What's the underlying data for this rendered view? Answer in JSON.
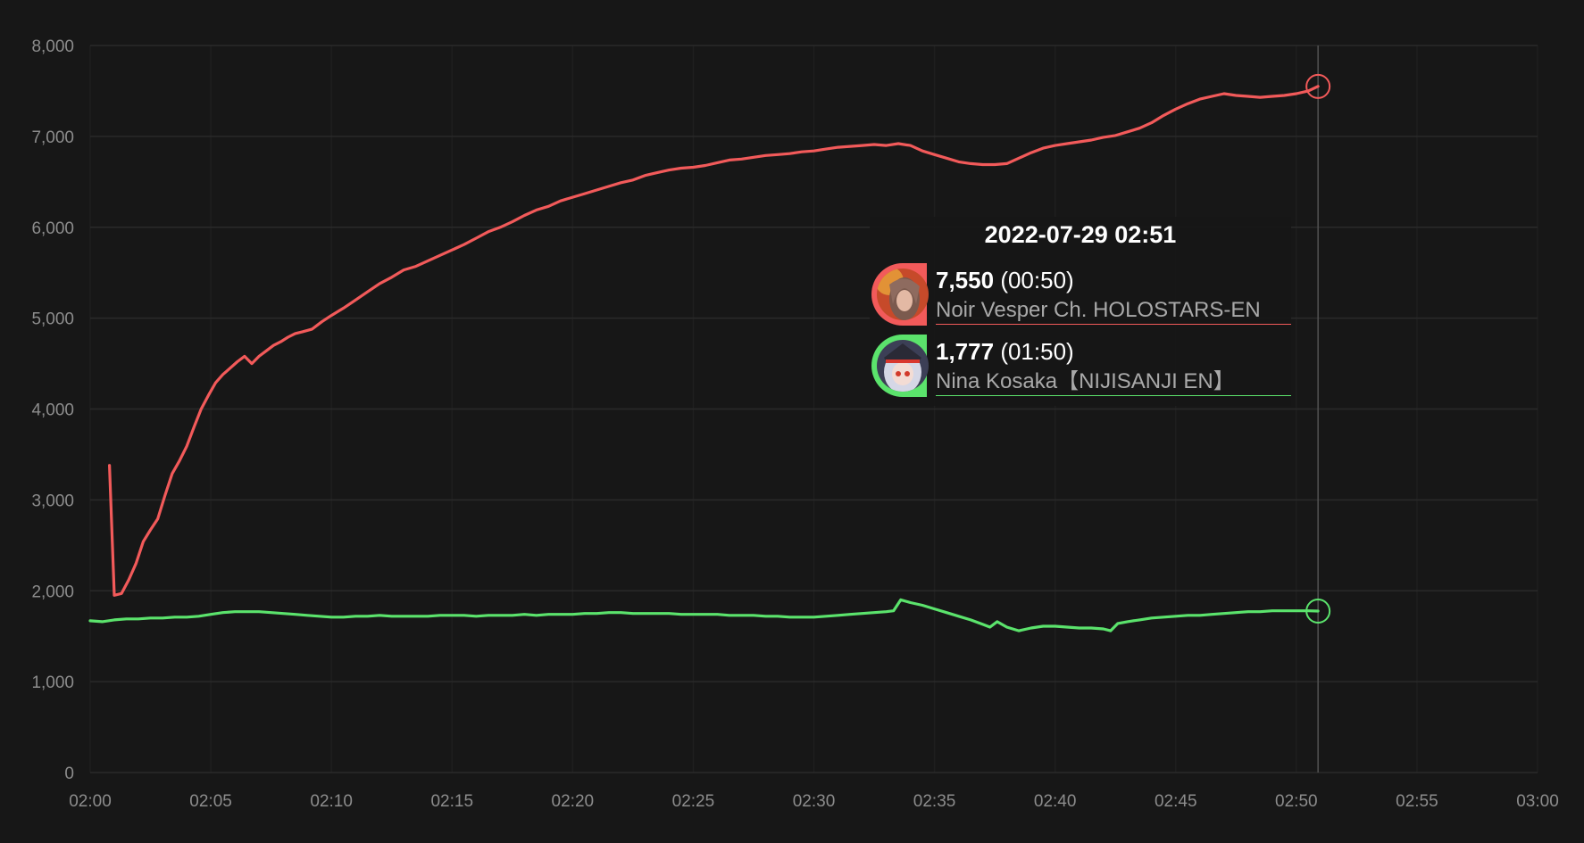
{
  "colors": {
    "background": "#171717",
    "noir": "#f25a5a",
    "nina": "#5be36c",
    "grid": "#2a2a2a",
    "tick": "#8c8c8c",
    "crosshair": "#555555"
  },
  "tooltip": {
    "title": "2022-07-29 02:51",
    "rows": [
      {
        "value": "7,550",
        "duration": "(00:50)",
        "name": "Noir Vesper Ch. HOLOSTARS-EN",
        "color": "#f25a5a",
        "icon": "noir-avatar-icon"
      },
      {
        "value": "1,777",
        "duration": "(01:50)",
        "name": "Nina Kosaka【NIJISANJI EN】",
        "color": "#5be36c",
        "icon": "nina-avatar-icon"
      }
    ]
  },
  "chart_data": {
    "type": "line",
    "xlim": [
      0,
      60
    ],
    "ylim": [
      0,
      8000
    ],
    "grid": true,
    "x_ticks": [
      {
        "minute": 0,
        "label": "02:00"
      },
      {
        "minute": 5,
        "label": "02:05"
      },
      {
        "minute": 10,
        "label": "02:10"
      },
      {
        "minute": 15,
        "label": "02:15"
      },
      {
        "minute": 20,
        "label": "02:20"
      },
      {
        "minute": 25,
        "label": "02:25"
      },
      {
        "minute": 30,
        "label": "02:30"
      },
      {
        "minute": 35,
        "label": "02:35"
      },
      {
        "minute": 40,
        "label": "02:40"
      },
      {
        "minute": 45,
        "label": "02:45"
      },
      {
        "minute": 50,
        "label": "02:50"
      },
      {
        "minute": 55,
        "label": "02:55"
      },
      {
        "minute": 60,
        "label": "03:00"
      }
    ],
    "y_ticks": [
      {
        "value": 0,
        "label": "0"
      },
      {
        "value": 1000,
        "label": "1,000"
      },
      {
        "value": 2000,
        "label": "2,000"
      },
      {
        "value": 3000,
        "label": "3,000"
      },
      {
        "value": 4000,
        "label": "4,000"
      },
      {
        "value": 5000,
        "label": "5,000"
      },
      {
        "value": 6000,
        "label": "6,000"
      },
      {
        "value": 7000,
        "label": "7,000"
      },
      {
        "value": 8000,
        "label": "8,000"
      }
    ],
    "crosshair_minute": 50.9,
    "series": [
      {
        "name": "Noir Vesper Ch. HOLOSTARS-EN",
        "color": "#f25a5a",
        "points": [
          [
            0.8,
            3380
          ],
          [
            1.0,
            1950
          ],
          [
            1.3,
            1970
          ],
          [
            1.6,
            2120
          ],
          [
            1.9,
            2300
          ],
          [
            2.2,
            2540
          ],
          [
            2.5,
            2670
          ],
          [
            2.8,
            2790
          ],
          [
            3.1,
            3050
          ],
          [
            3.4,
            3290
          ],
          [
            3.7,
            3430
          ],
          [
            4.0,
            3590
          ],
          [
            4.3,
            3800
          ],
          [
            4.6,
            4000
          ],
          [
            4.9,
            4150
          ],
          [
            5.2,
            4290
          ],
          [
            5.5,
            4380
          ],
          [
            5.8,
            4450
          ],
          [
            6.1,
            4520
          ],
          [
            6.4,
            4580
          ],
          [
            6.7,
            4500
          ],
          [
            7.0,
            4580
          ],
          [
            7.3,
            4640
          ],
          [
            7.6,
            4700
          ],
          [
            7.9,
            4740
          ],
          [
            8.2,
            4790
          ],
          [
            8.5,
            4830
          ],
          [
            8.8,
            4850
          ],
          [
            9.2,
            4880
          ],
          [
            9.6,
            4960
          ],
          [
            10.0,
            5030
          ],
          [
            10.5,
            5110
          ],
          [
            11.0,
            5200
          ],
          [
            11.5,
            5290
          ],
          [
            12.0,
            5380
          ],
          [
            12.5,
            5450
          ],
          [
            13.0,
            5530
          ],
          [
            13.5,
            5570
          ],
          [
            14.0,
            5630
          ],
          [
            14.5,
            5690
          ],
          [
            15.0,
            5750
          ],
          [
            15.5,
            5810
          ],
          [
            16.0,
            5880
          ],
          [
            16.5,
            5950
          ],
          [
            17.0,
            6000
          ],
          [
            17.5,
            6060
          ],
          [
            18.0,
            6130
          ],
          [
            18.5,
            6190
          ],
          [
            19.0,
            6230
          ],
          [
            19.5,
            6290
          ],
          [
            20.0,
            6330
          ],
          [
            20.5,
            6370
          ],
          [
            21.0,
            6410
          ],
          [
            21.5,
            6450
          ],
          [
            22.0,
            6490
          ],
          [
            22.5,
            6520
          ],
          [
            23.0,
            6570
          ],
          [
            23.5,
            6600
          ],
          [
            24.0,
            6630
          ],
          [
            24.5,
            6650
          ],
          [
            25.0,
            6660
          ],
          [
            25.5,
            6680
          ],
          [
            26.0,
            6710
          ],
          [
            26.5,
            6740
          ],
          [
            27.0,
            6750
          ],
          [
            27.5,
            6770
          ],
          [
            28.0,
            6790
          ],
          [
            28.5,
            6800
          ],
          [
            29.0,
            6810
          ],
          [
            29.5,
            6830
          ],
          [
            30.0,
            6840
          ],
          [
            30.5,
            6860
          ],
          [
            31.0,
            6880
          ],
          [
            31.5,
            6890
          ],
          [
            32.0,
            6900
          ],
          [
            32.5,
            6910
          ],
          [
            33.0,
            6900
          ],
          [
            33.5,
            6920
          ],
          [
            34.0,
            6900
          ],
          [
            34.5,
            6840
          ],
          [
            35.0,
            6800
          ],
          [
            35.5,
            6760
          ],
          [
            36.0,
            6720
          ],
          [
            36.5,
            6700
          ],
          [
            37.0,
            6690
          ],
          [
            37.5,
            6690
          ],
          [
            38.0,
            6700
          ],
          [
            38.5,
            6760
          ],
          [
            39.0,
            6820
          ],
          [
            39.5,
            6870
          ],
          [
            40.0,
            6900
          ],
          [
            40.5,
            6920
          ],
          [
            41.0,
            6940
          ],
          [
            41.5,
            6960
          ],
          [
            42.0,
            6990
          ],
          [
            42.5,
            7010
          ],
          [
            43.0,
            7050
          ],
          [
            43.5,
            7090
          ],
          [
            44.0,
            7150
          ],
          [
            44.5,
            7230
          ],
          [
            45.0,
            7300
          ],
          [
            45.5,
            7360
          ],
          [
            46.0,
            7410
          ],
          [
            46.5,
            7440
          ],
          [
            47.0,
            7470
          ],
          [
            47.5,
            7450
          ],
          [
            48.0,
            7440
          ],
          [
            48.5,
            7430
          ],
          [
            49.0,
            7440
          ],
          [
            49.5,
            7450
          ],
          [
            50.0,
            7470
          ],
          [
            50.5,
            7500
          ],
          [
            50.9,
            7550
          ]
        ]
      },
      {
        "name": "Nina Kosaka【NIJISANJI EN】",
        "color": "#5be36c",
        "points": [
          [
            0.0,
            1670
          ],
          [
            0.5,
            1660
          ],
          [
            1.0,
            1680
          ],
          [
            1.5,
            1690
          ],
          [
            2.0,
            1690
          ],
          [
            2.5,
            1700
          ],
          [
            3.0,
            1700
          ],
          [
            3.5,
            1710
          ],
          [
            4.0,
            1710
          ],
          [
            4.5,
            1720
          ],
          [
            5.0,
            1740
          ],
          [
            5.5,
            1760
          ],
          [
            6.0,
            1770
          ],
          [
            6.5,
            1770
          ],
          [
            7.0,
            1770
          ],
          [
            7.5,
            1760
          ],
          [
            8.0,
            1750
          ],
          [
            8.5,
            1740
          ],
          [
            9.0,
            1730
          ],
          [
            9.5,
            1720
          ],
          [
            10.0,
            1710
          ],
          [
            10.5,
            1710
          ],
          [
            11.0,
            1720
          ],
          [
            11.5,
            1720
          ],
          [
            12.0,
            1730
          ],
          [
            12.5,
            1720
          ],
          [
            13.0,
            1720
          ],
          [
            13.5,
            1720
          ],
          [
            14.0,
            1720
          ],
          [
            14.5,
            1730
          ],
          [
            15.0,
            1730
          ],
          [
            15.5,
            1730
          ],
          [
            16.0,
            1720
          ],
          [
            16.5,
            1730
          ],
          [
            17.0,
            1730
          ],
          [
            17.5,
            1730
          ],
          [
            18.0,
            1740
          ],
          [
            18.5,
            1730
          ],
          [
            19.0,
            1740
          ],
          [
            19.5,
            1740
          ],
          [
            20.0,
            1740
          ],
          [
            20.5,
            1750
          ],
          [
            21.0,
            1750
          ],
          [
            21.5,
            1760
          ],
          [
            22.0,
            1760
          ],
          [
            22.5,
            1750
          ],
          [
            23.0,
            1750
          ],
          [
            23.5,
            1750
          ],
          [
            24.0,
            1750
          ],
          [
            24.5,
            1740
          ],
          [
            25.0,
            1740
          ],
          [
            25.5,
            1740
          ],
          [
            26.0,
            1740
          ],
          [
            26.5,
            1730
          ],
          [
            27.0,
            1730
          ],
          [
            27.5,
            1730
          ],
          [
            28.0,
            1720
          ],
          [
            28.5,
            1720
          ],
          [
            29.0,
            1710
          ],
          [
            29.5,
            1710
          ],
          [
            30.0,
            1710
          ],
          [
            30.5,
            1720
          ],
          [
            31.0,
            1730
          ],
          [
            31.5,
            1740
          ],
          [
            32.0,
            1750
          ],
          [
            32.5,
            1760
          ],
          [
            33.0,
            1770
          ],
          [
            33.3,
            1780
          ],
          [
            33.6,
            1900
          ],
          [
            34.0,
            1870
          ],
          [
            34.5,
            1840
          ],
          [
            35.0,
            1800
          ],
          [
            35.5,
            1760
          ],
          [
            36.0,
            1720
          ],
          [
            36.5,
            1680
          ],
          [
            37.0,
            1630
          ],
          [
            37.3,
            1600
          ],
          [
            37.6,
            1660
          ],
          [
            38.0,
            1600
          ],
          [
            38.5,
            1560
          ],
          [
            39.0,
            1590
          ],
          [
            39.5,
            1610
          ],
          [
            40.0,
            1610
          ],
          [
            40.5,
            1600
          ],
          [
            41.0,
            1590
          ],
          [
            41.5,
            1590
          ],
          [
            42.0,
            1580
          ],
          [
            42.3,
            1560
          ],
          [
            42.6,
            1640
          ],
          [
            43.0,
            1660
          ],
          [
            43.5,
            1680
          ],
          [
            44.0,
            1700
          ],
          [
            44.5,
            1710
          ],
          [
            45.0,
            1720
          ],
          [
            45.5,
            1730
          ],
          [
            46.0,
            1730
          ],
          [
            46.5,
            1740
          ],
          [
            47.0,
            1750
          ],
          [
            47.5,
            1760
          ],
          [
            48.0,
            1770
          ],
          [
            48.5,
            1770
          ],
          [
            49.0,
            1780
          ],
          [
            49.5,
            1780
          ],
          [
            50.0,
            1780
          ],
          [
            50.5,
            1780
          ],
          [
            50.9,
            1777
          ]
        ]
      }
    ]
  }
}
